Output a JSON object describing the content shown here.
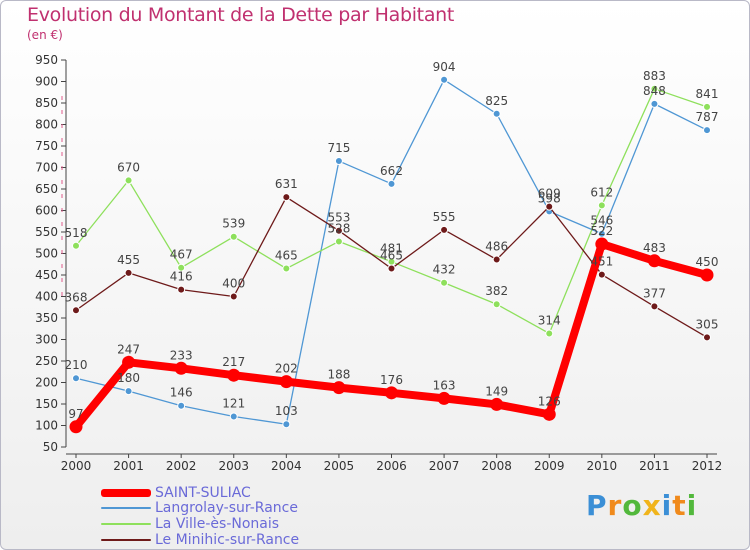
{
  "header": {
    "title": "Evolution du Montant de la Dette par Habitant",
    "unit": "(en €)"
  },
  "brand": {
    "text": "Proxiti",
    "letters": [
      {
        "ch": "P",
        "color": "#3b8fd6"
      },
      {
        "ch": "r",
        "color": "#f08a1c"
      },
      {
        "ch": "o",
        "color": "#52b83c"
      },
      {
        "ch": "x",
        "color": "#f0b41c"
      },
      {
        "ch": "i",
        "color": "#3b8fd6"
      },
      {
        "ch": "t",
        "color": "#f08a1c"
      },
      {
        "ch": "i",
        "color": "#52b83c"
      }
    ]
  },
  "chart_data": {
    "type": "line",
    "title": "Evolution du Montant de la Dette par Habitant",
    "ylabel": "(en €)",
    "xlabel": "",
    "x": [
      "2000",
      "2001",
      "2002",
      "2003",
      "2004",
      "2005",
      "2006",
      "2007",
      "2008",
      "2009",
      "2010",
      "2011",
      "2012"
    ],
    "ylim": [
      50,
      950
    ],
    "yticks": [
      50,
      100,
      150,
      200,
      250,
      300,
      350,
      400,
      450,
      500,
      550,
      600,
      650,
      700,
      750,
      800,
      850,
      900,
      950
    ],
    "grid": false,
    "legend_position": "bottom-left",
    "series": [
      {
        "name": "SAINT-SULIAC",
        "color": "#ff0000",
        "values": [
          97,
          247,
          233,
          217,
          202,
          188,
          176,
          163,
          149,
          126,
          522,
          483,
          450
        ]
      },
      {
        "name": "Langrolay-sur-Rance",
        "color": "#4f97d4",
        "values": [
          210,
          180,
          146,
          121,
          103,
          715,
          662,
          904,
          825,
          598,
          546,
          848,
          787
        ]
      },
      {
        "name": "La Ville-ès-Nonais",
        "color": "#8ee05c",
        "values": [
          518,
          670,
          467,
          539,
          465,
          528,
          481,
          432,
          382,
          314,
          612,
          883,
          841
        ]
      },
      {
        "name": "Le Minihic-sur-Rance",
        "color": "#6e1a1a",
        "values": [
          368,
          455,
          416,
          400,
          631,
          553,
          465,
          555,
          486,
          609,
          451,
          377,
          305
        ]
      }
    ]
  }
}
